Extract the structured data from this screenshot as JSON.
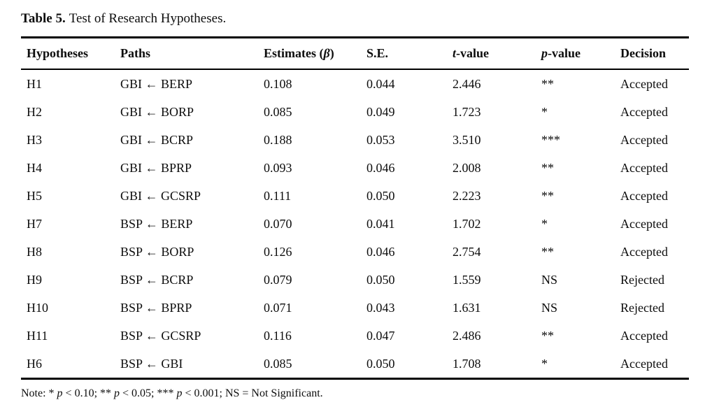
{
  "title": {
    "label": "Table 5.",
    "text": "Test of Research Hypotheses."
  },
  "table": {
    "headers": [
      {
        "name": "hypotheses",
        "parts": [
          {
            "text": "Hypotheses"
          }
        ]
      },
      {
        "name": "paths",
        "parts": [
          {
            "text": "Paths"
          }
        ]
      },
      {
        "name": "estimates-beta",
        "parts": [
          {
            "text": "Estimates ("
          },
          {
            "text": "β",
            "italic": true
          },
          {
            "text": ")"
          }
        ]
      },
      {
        "name": "standard-error",
        "parts": [
          {
            "text": "S.E."
          }
        ]
      },
      {
        "name": "t-value",
        "parts": [
          {
            "text": "t",
            "italic": true
          },
          {
            "text": "-value"
          }
        ]
      },
      {
        "name": "p-value",
        "parts": [
          {
            "text": "p",
            "italic": true
          },
          {
            "text": "-value"
          }
        ]
      },
      {
        "name": "decision",
        "parts": [
          {
            "text": "Decision"
          }
        ]
      }
    ],
    "rows": [
      {
        "id": "H1",
        "path": "GBI ← BERP",
        "estimate": "0.108",
        "se": "0.044",
        "t": "2.446",
        "p": "**",
        "decision": "Accepted"
      },
      {
        "id": "H2",
        "path": "GBI ← BORP",
        "estimate": "0.085",
        "se": "0.049",
        "t": "1.723",
        "p": "*",
        "decision": "Accepted"
      },
      {
        "id": "H3",
        "path": "GBI ← BCRP",
        "estimate": "0.188",
        "se": "0.053",
        "t": "3.510",
        "p": "***",
        "decision": "Accepted"
      },
      {
        "id": "H4",
        "path": "GBI ← BPRP",
        "estimate": "0.093",
        "se": "0.046",
        "t": "2.008",
        "p": "**",
        "decision": "Accepted"
      },
      {
        "id": "H5",
        "path": "GBI ← GCSRP",
        "estimate": "0.111",
        "se": "0.050",
        "t": "2.223",
        "p": "**",
        "decision": "Accepted"
      },
      {
        "id": "H7",
        "path": "BSP ← BERP",
        "estimate": "0.070",
        "se": "0.041",
        "t": "1.702",
        "p": "*",
        "decision": "Accepted"
      },
      {
        "id": "H8",
        "path": "BSP ← BORP",
        "estimate": "0.126",
        "se": "0.046",
        "t": "2.754",
        "p": "**",
        "decision": "Accepted"
      },
      {
        "id": "H9",
        "path": "BSP ← BCRP",
        "estimate": "0.079",
        "se": "0.050",
        "t": "1.559",
        "p": "NS",
        "decision": "Rejected"
      },
      {
        "id": "H10",
        "path": "BSP ← BPRP",
        "estimate": "0.071",
        "se": "0.043",
        "t": "1.631",
        "p": "NS",
        "decision": "Rejected"
      },
      {
        "id": "H11",
        "path": "BSP ← GCSRP",
        "estimate": "0.116",
        "se": "0.047",
        "t": "2.486",
        "p": "**",
        "decision": "Accepted"
      },
      {
        "id": "H6",
        "path": "BSP ← GBI",
        "estimate": "0.085",
        "se": "0.050",
        "t": "1.708",
        "p": "*",
        "decision": "Accepted"
      }
    ]
  },
  "note": {
    "parts": [
      {
        "text": "Note: * "
      },
      {
        "text": "p",
        "italic": true
      },
      {
        "text": " < 0.10; ** "
      },
      {
        "text": "p",
        "italic": true
      },
      {
        "text": " < 0.05; *** "
      },
      {
        "text": "p",
        "italic": true
      },
      {
        "text": " < 0.001; NS = Not Significant."
      }
    ]
  }
}
